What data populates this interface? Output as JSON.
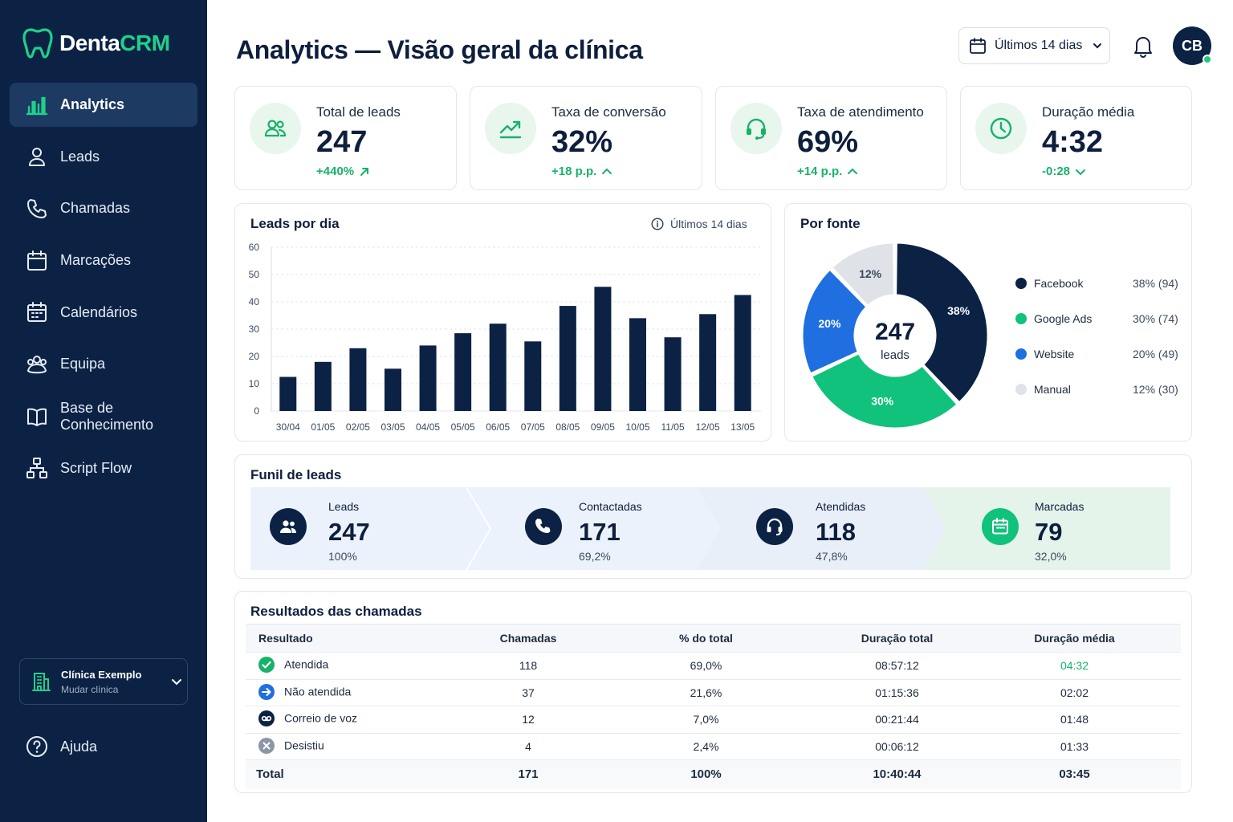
{
  "brand": {
    "name_a": "Denta",
    "name_b": "CRM"
  },
  "nav": [
    {
      "label": "Analytics",
      "icon": "bar-chart-icon",
      "active": true
    },
    {
      "label": "Leads",
      "icon": "user-icon"
    },
    {
      "label": "Chamadas",
      "icon": "phone-icon"
    },
    {
      "label": "Marcações",
      "icon": "calendar-icon"
    },
    {
      "label": "Calendários",
      "icon": "calendars-icon"
    },
    {
      "label": "Equipa",
      "icon": "team-icon"
    },
    {
      "label": "Base de Conhecimento",
      "icon": "book-icon"
    },
    {
      "label": "Script Flow",
      "icon": "flow-icon"
    }
  ],
  "clinic": {
    "name": "Clínica Exemplo",
    "sub": "Mudar clínica"
  },
  "help": {
    "label": "Ajuda"
  },
  "header": {
    "title": "Analytics — Visão geral da clínica",
    "date_range": "Últimos 14 dias",
    "avatar": "CB"
  },
  "kpis": [
    {
      "label": "Total de leads",
      "value": "247",
      "delta": "+440%",
      "delta_dir": "up-right",
      "icon": "users-icon"
    },
    {
      "label": "Taxa de conversão",
      "value": "32%",
      "delta": "+18 p.p.",
      "delta_dir": "up",
      "icon": "trend-up-icon"
    },
    {
      "label": "Taxa de atendimento",
      "value": "69%",
      "delta": "+14 p.p.",
      "delta_dir": "up",
      "icon": "headset-icon"
    },
    {
      "label": "Duração média",
      "value": "4:32",
      "delta": "-0:28",
      "delta_dir": "down",
      "icon": "clock-icon"
    }
  ],
  "chart_data": [
    {
      "type": "bar",
      "title": "Leads por dia",
      "subtitle": "Últimos 14 dias",
      "categories": [
        "30/04",
        "01/05",
        "02/05",
        "03/05",
        "04/05",
        "05/05",
        "06/05",
        "07/05",
        "08/05",
        "09/05",
        "10/05",
        "11/05",
        "12/05",
        "13/05"
      ],
      "values": [
        12.5,
        18,
        23,
        15.5,
        24,
        28.5,
        32,
        25.5,
        38.5,
        45.5,
        34,
        27,
        35.5,
        42.5
      ],
      "yticks": [
        0,
        10,
        20,
        30,
        40,
        50,
        60
      ],
      "ylim": [
        0,
        60
      ],
      "grid": true,
      "bar_color": "#0c2244"
    },
    {
      "type": "pie",
      "title": "Por fonte",
      "center_value": "247",
      "center_label": "leads",
      "slices": [
        {
          "label": "Facebook",
          "value": 94,
          "pct_label": "38%",
          "legend": "38% (94)",
          "color": "#0c2244"
        },
        {
          "label": "Google Ads",
          "value": 74,
          "pct_label": "30%",
          "legend": "30% (74)",
          "color": "#10c27b"
        },
        {
          "label": "Website",
          "value": 49,
          "pct_label": "20%",
          "legend": "20% (49)",
          "color": "#1f6fe0"
        },
        {
          "label": "Manual",
          "value": 30,
          "pct_label": "12%",
          "legend": "12% (30)",
          "color": "#dfe3e8"
        }
      ],
      "legend_position": "right"
    }
  ],
  "funnel": {
    "title": "Funil de leads",
    "steps": [
      {
        "label": "Leads",
        "value": "247",
        "pct": "100%",
        "icon": "users-icon"
      },
      {
        "label": "Contactadas",
        "value": "171",
        "pct": "69,2%",
        "icon": "phone-icon"
      },
      {
        "label": "Atendidas",
        "value": "118",
        "pct": "47,8%",
        "icon": "headset-icon"
      },
      {
        "label": "Marcadas",
        "value": "79",
        "pct": "32,0%",
        "icon": "calendar-icon"
      }
    ]
  },
  "results": {
    "title": "Resultados das chamadas",
    "headers": [
      "Resultado",
      "Chamadas",
      "% do total",
      "Duração total",
      "Duração média"
    ],
    "rows": [
      {
        "name": "Atendida",
        "icon": "check-icon",
        "color": "#17b26a",
        "calls": "118",
        "pct": "69,0%",
        "total": "08:57:12",
        "avg": "04:32"
      },
      {
        "name": "Não atendida",
        "icon": "arrow-right-icon",
        "color": "#1f6fe0",
        "calls": "37",
        "pct": "21,6%",
        "total": "01:15:36",
        "avg": "02:02"
      },
      {
        "name": "Correio de voz",
        "icon": "voicemail-icon",
        "color": "#0c2244",
        "calls": "12",
        "pct": "7,0%",
        "total": "00:21:44",
        "avg": "01:48"
      },
      {
        "name": "Desistiu",
        "icon": "x-icon",
        "color": "#8c96a5",
        "calls": "4",
        "pct": "2,4%",
        "total": "00:06:12",
        "avg": "01:33"
      }
    ],
    "total": {
      "name": "Total",
      "calls": "171",
      "pct": "100%",
      "total": "10:40:44",
      "avg": "03:45"
    }
  }
}
